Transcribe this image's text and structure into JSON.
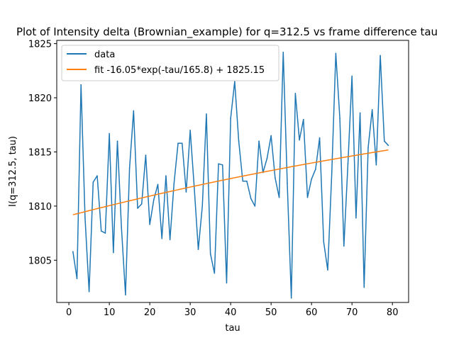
{
  "chart_data": {
    "type": "line",
    "title": "Plot of Intensity delta (Brownian_example) for q=312.5 vs frame difference tau",
    "xlabel": "tau",
    "ylabel": "I(q=312.5, tau)",
    "xlim": [
      -3,
      84
    ],
    "ylim": [
      1801.1,
      1825.3
    ],
    "xticks": [
      0,
      10,
      20,
      30,
      40,
      50,
      60,
      70,
      80
    ],
    "yticks": [
      1805,
      1810,
      1815,
      1820,
      1825
    ],
    "grid": false,
    "legend_position": "upper-left",
    "series": [
      {
        "name": "data",
        "color": "#1f77b4",
        "x": [
          1,
          2,
          3,
          4,
          5,
          6,
          7,
          8,
          9,
          10,
          11,
          12,
          13,
          14,
          15,
          16,
          17,
          18,
          19,
          20,
          21,
          22,
          23,
          24,
          25,
          26,
          27,
          28,
          29,
          30,
          31,
          32,
          33,
          34,
          35,
          36,
          37,
          38,
          39,
          40,
          41,
          42,
          43,
          44,
          45,
          46,
          47,
          48,
          49,
          50,
          51,
          52,
          53,
          54,
          55,
          56,
          57,
          58,
          59,
          60,
          61,
          62,
          63,
          64,
          65,
          66,
          67,
          68,
          69,
          70,
          71,
          72,
          73,
          74,
          75,
          76,
          77,
          78,
          79
        ],
        "y": [
          1805.8,
          1803.3,
          1821.2,
          1808.9,
          1802.1,
          1812.2,
          1812.8,
          1807.7,
          1807.5,
          1816.7,
          1805.7,
          1816.0,
          1808.0,
          1801.8,
          1813.5,
          1818.8,
          1809.8,
          1810.2,
          1814.7,
          1808.3,
          1810.6,
          1812.0,
          1807.0,
          1812.8,
          1806.9,
          1812.1,
          1815.8,
          1815.8,
          1811.3,
          1817.0,
          1811.7,
          1806.0,
          1810.0,
          1818.5,
          1805.6,
          1803.8,
          1813.9,
          1813.8,
          1802.9,
          1818.1,
          1821.5,
          1816.0,
          1812.3,
          1812.3,
          1810.7,
          1810.0,
          1816.0,
          1813.1,
          1814.4,
          1816.5,
          1812.6,
          1810.8,
          1824.2,
          1812.1,
          1801.5,
          1820.4,
          1816.1,
          1818.0,
          1810.8,
          1812.5,
          1813.4,
          1816.3,
          1806.7,
          1804.1,
          1813.0,
          1824.1,
          1818.1,
          1806.3,
          1813.9,
          1822.0,
          1808.9,
          1818.6,
          1802.5,
          1815.4,
          1818.9,
          1813.8,
          1823.9,
          1816.0,
          1815.6
        ]
      },
      {
        "name": "fit -16.05*exp(-tau/165.8) + 1825.15",
        "color": "#ff7f0e",
        "fit": {
          "a": -16.05,
          "tau0": 165.8,
          "c": 1825.15,
          "x_start": 1,
          "x_end": 79
        }
      }
    ]
  }
}
